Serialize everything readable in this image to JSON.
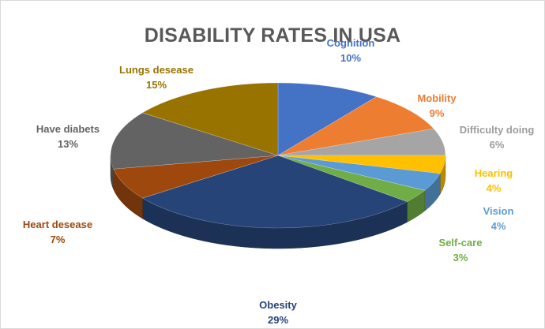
{
  "chart_data": {
    "type": "pie",
    "title": "DISABILITY RATES IN USA",
    "slices": [
      {
        "name": "Cognition",
        "label": "10%",
        "value": 10,
        "color": "#4472c4"
      },
      {
        "name": "Mobility",
        "label": "9%",
        "value": 9,
        "color": "#ed7d31"
      },
      {
        "name": "Difficulty doing",
        "label": "6%",
        "value": 6,
        "color": "#a5a5a5"
      },
      {
        "name": "Hearing",
        "label": "4%",
        "value": 4,
        "color": "#ffc000"
      },
      {
        "name": "Vision",
        "label": "4%",
        "value": 4,
        "color": "#5b9bd5"
      },
      {
        "name": "Self-care",
        "label": "3%",
        "value": 3,
        "color": "#70ad47"
      },
      {
        "name": "Obesity",
        "label": "29%",
        "value": 29,
        "color": "#264478"
      },
      {
        "name": "Heart desease",
        "label": "7%",
        "value": 7,
        "color": "#9e480e"
      },
      {
        "name": "Have diabets",
        "label": "13%",
        "value": 13,
        "color": "#636363"
      },
      {
        "name": "Lungs desease",
        "label": "15%",
        "value": 15,
        "color": "#997300"
      }
    ]
  }
}
